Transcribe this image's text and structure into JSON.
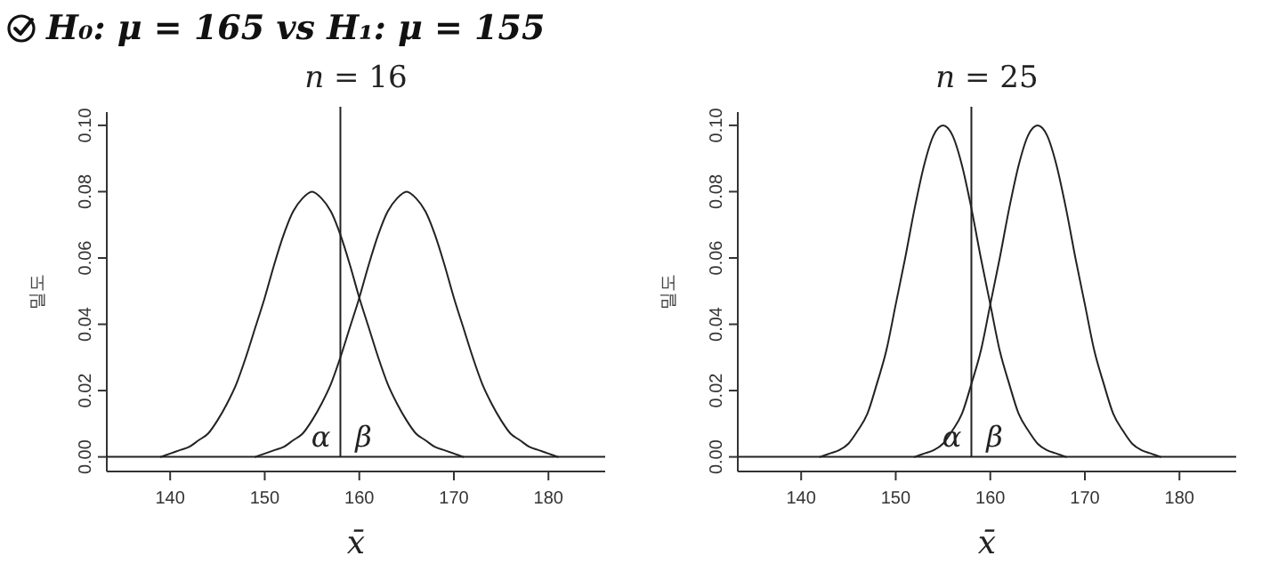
{
  "chart_data": [
    {
      "type": "line",
      "title": "n = 16",
      "xlabel": "x̄",
      "ylabel": "밀도",
      "xlim": [
        133.3,
        186
      ],
      "ylim": [
        -0.0044,
        0.104
      ],
      "xticks": [
        140,
        150,
        160,
        170,
        180
      ],
      "yticks": [
        {
          "value": 0,
          "label": "0.00"
        },
        {
          "value": 0.02,
          "label": "0.02"
        },
        {
          "value": 0.04,
          "label": "0.04"
        },
        {
          "value": 0.06,
          "label": "0.06"
        },
        {
          "value": 0.08,
          "label": "0.08"
        },
        {
          "value": 0.1,
          "label": "0.10"
        }
      ],
      "series": [
        {
          "color": "#222222",
          "x": [
            139,
            140,
            141,
            142,
            143,
            144,
            145,
            146,
            147,
            148,
            149,
            150,
            151,
            152,
            153,
            154,
            155,
            156,
            157,
            158,
            159,
            160,
            161,
            162,
            163,
            164,
            165,
            166,
            167,
            168,
            169,
            170,
            171
          ],
          "values": [
            0,
            0.001,
            0.002,
            0.003,
            0.005,
            0.007,
            0.011,
            0.016,
            0.022,
            0.03,
            0.039,
            0.048,
            0.058,
            0.067,
            0.074,
            0.078,
            0.08,
            0.078,
            0.074,
            0.067,
            0.058,
            0.048,
            0.039,
            0.03,
            0.022,
            0.016,
            0.011,
            0.007,
            0.005,
            0.003,
            0.002,
            0.001,
            0
          ]
        },
        {
          "color": "#222222",
          "x": [
            149,
            150,
            151,
            152,
            153,
            154,
            155,
            156,
            157,
            158,
            159,
            160,
            161,
            162,
            163,
            164,
            165,
            166,
            167,
            168,
            169,
            170,
            171,
            172,
            173,
            174,
            175,
            176,
            177,
            178,
            179,
            180,
            181
          ],
          "values": [
            0,
            0.001,
            0.002,
            0.003,
            0.005,
            0.007,
            0.011,
            0.016,
            0.022,
            0.03,
            0.039,
            0.048,
            0.058,
            0.067,
            0.074,
            0.078,
            0.08,
            0.078,
            0.074,
            0.067,
            0.058,
            0.048,
            0.039,
            0.03,
            0.022,
            0.016,
            0.011,
            0.007,
            0.005,
            0.003,
            0.002,
            0.001,
            0
          ]
        }
      ],
      "ref_lines": [
        {
          "axis": "x",
          "value": 158,
          "color": "#222222"
        },
        {
          "axis": "y",
          "value": 0,
          "color": "#222222"
        }
      ],
      "annotations": [
        "H₀: μ = 165  vs  H₁: μ = 155",
        "α",
        "β"
      ]
    },
    {
      "type": "line",
      "title": "n = 25",
      "xlabel": "x̄",
      "ylabel": "밀도",
      "xlim": [
        133.3,
        186
      ],
      "ylim": [
        -0.0044,
        0.104
      ],
      "xticks": [
        140,
        150,
        160,
        170,
        180
      ],
      "yticks": [
        {
          "value": 0,
          "label": "0.00"
        },
        {
          "value": 0.02,
          "label": "0.02"
        },
        {
          "value": 0.04,
          "label": "0.04"
        },
        {
          "value": 0.06,
          "label": "0.06"
        },
        {
          "value": 0.08,
          "label": "0.08"
        },
        {
          "value": 0.1,
          "label": "0.10"
        }
      ],
      "series": [
        {
          "color": "#222222",
          "x": [
            142,
            143,
            144,
            145,
            146,
            147,
            148,
            149,
            150,
            151,
            152,
            153,
            154,
            155,
            156,
            157,
            158,
            159,
            160,
            161,
            162,
            163,
            164,
            165,
            166,
            167,
            168
          ],
          "values": [
            0,
            0.001,
            0.002,
            0.004,
            0.008,
            0.013,
            0.022,
            0.032,
            0.046,
            0.06,
            0.075,
            0.088,
            0.097,
            0.1,
            0.097,
            0.088,
            0.075,
            0.06,
            0.046,
            0.032,
            0.022,
            0.013,
            0.008,
            0.004,
            0.002,
            0.001,
            0
          ]
        },
        {
          "color": "#222222",
          "x": [
            152,
            153,
            154,
            155,
            156,
            157,
            158,
            159,
            160,
            161,
            162,
            163,
            164,
            165,
            166,
            167,
            168,
            169,
            170,
            171,
            172,
            173,
            174,
            175,
            176,
            177,
            178
          ],
          "values": [
            0,
            0.001,
            0.002,
            0.004,
            0.008,
            0.013,
            0.022,
            0.032,
            0.046,
            0.06,
            0.075,
            0.088,
            0.097,
            0.1,
            0.097,
            0.088,
            0.075,
            0.06,
            0.046,
            0.032,
            0.022,
            0.013,
            0.008,
            0.004,
            0.002,
            0.001,
            0
          ]
        }
      ],
      "ref_lines": [
        {
          "axis": "x",
          "value": 158,
          "color": "#222222"
        },
        {
          "axis": "y",
          "value": 0,
          "color": "#222222"
        }
      ],
      "annotations": [
        "α",
        "β"
      ]
    }
  ]
}
